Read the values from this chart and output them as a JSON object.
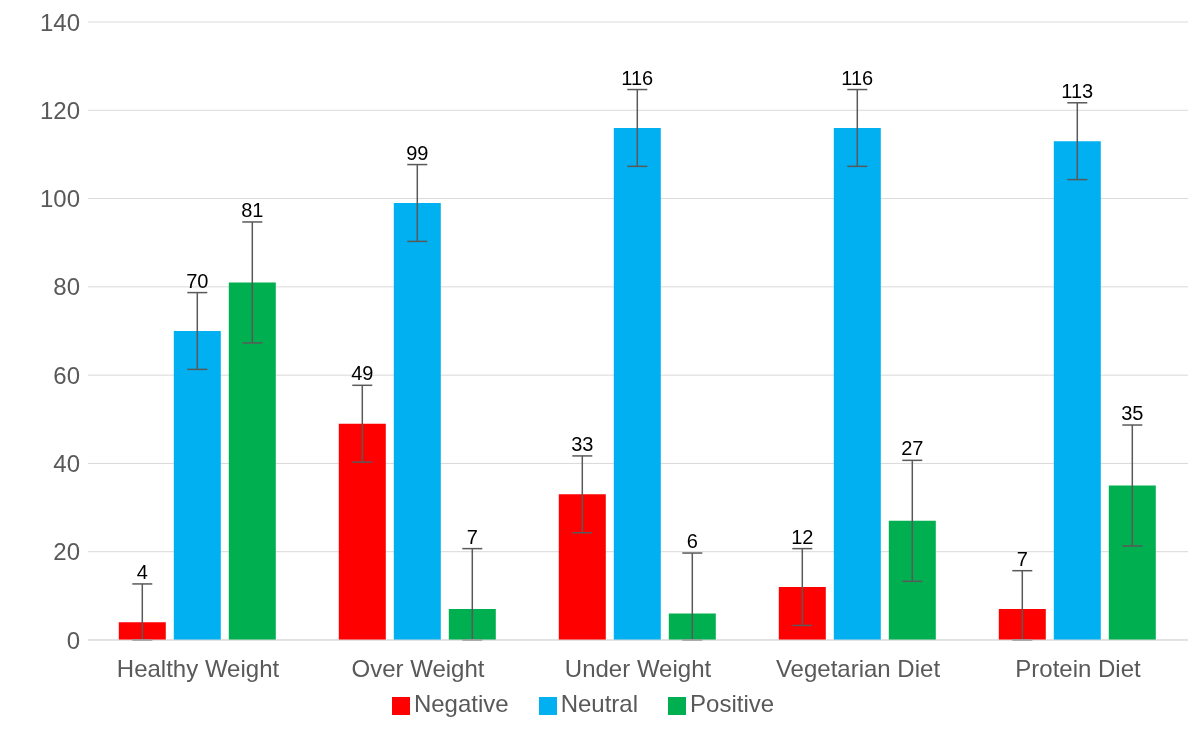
{
  "chart_data": {
    "type": "bar",
    "categories": [
      "Healthy Weight",
      "Over Weight",
      "Under Weight",
      "Vegetarian Diet",
      "Protein Diet"
    ],
    "series": [
      {
        "name": "Negative",
        "color": "#ff0000",
        "values": [
          4,
          49,
          33,
          12,
          7
        ],
        "errors": [
          [
            0,
            12.7
          ],
          8.7,
          8.7,
          8.7,
          [
            0,
            15.7
          ]
        ]
      },
      {
        "name": "Neutral",
        "color": "#00b0f0",
        "values": [
          70,
          99,
          116,
          116,
          113
        ],
        "errors": [
          8.7,
          8.7,
          8.7,
          8.7,
          8.7
        ]
      },
      {
        "name": "Positive",
        "color": "#00b050",
        "values": [
          81,
          7,
          6,
          27,
          35
        ],
        "errors": [
          13.7,
          [
            0,
            20.7
          ],
          [
            0,
            19.7
          ],
          13.7,
          13.7
        ]
      }
    ],
    "ylim": [
      0,
      140
    ],
    "yticks": [
      0,
      20,
      40,
      60,
      80,
      100,
      120,
      140
    ],
    "grid": "y",
    "legend": "bottom",
    "data_labels": true
  }
}
